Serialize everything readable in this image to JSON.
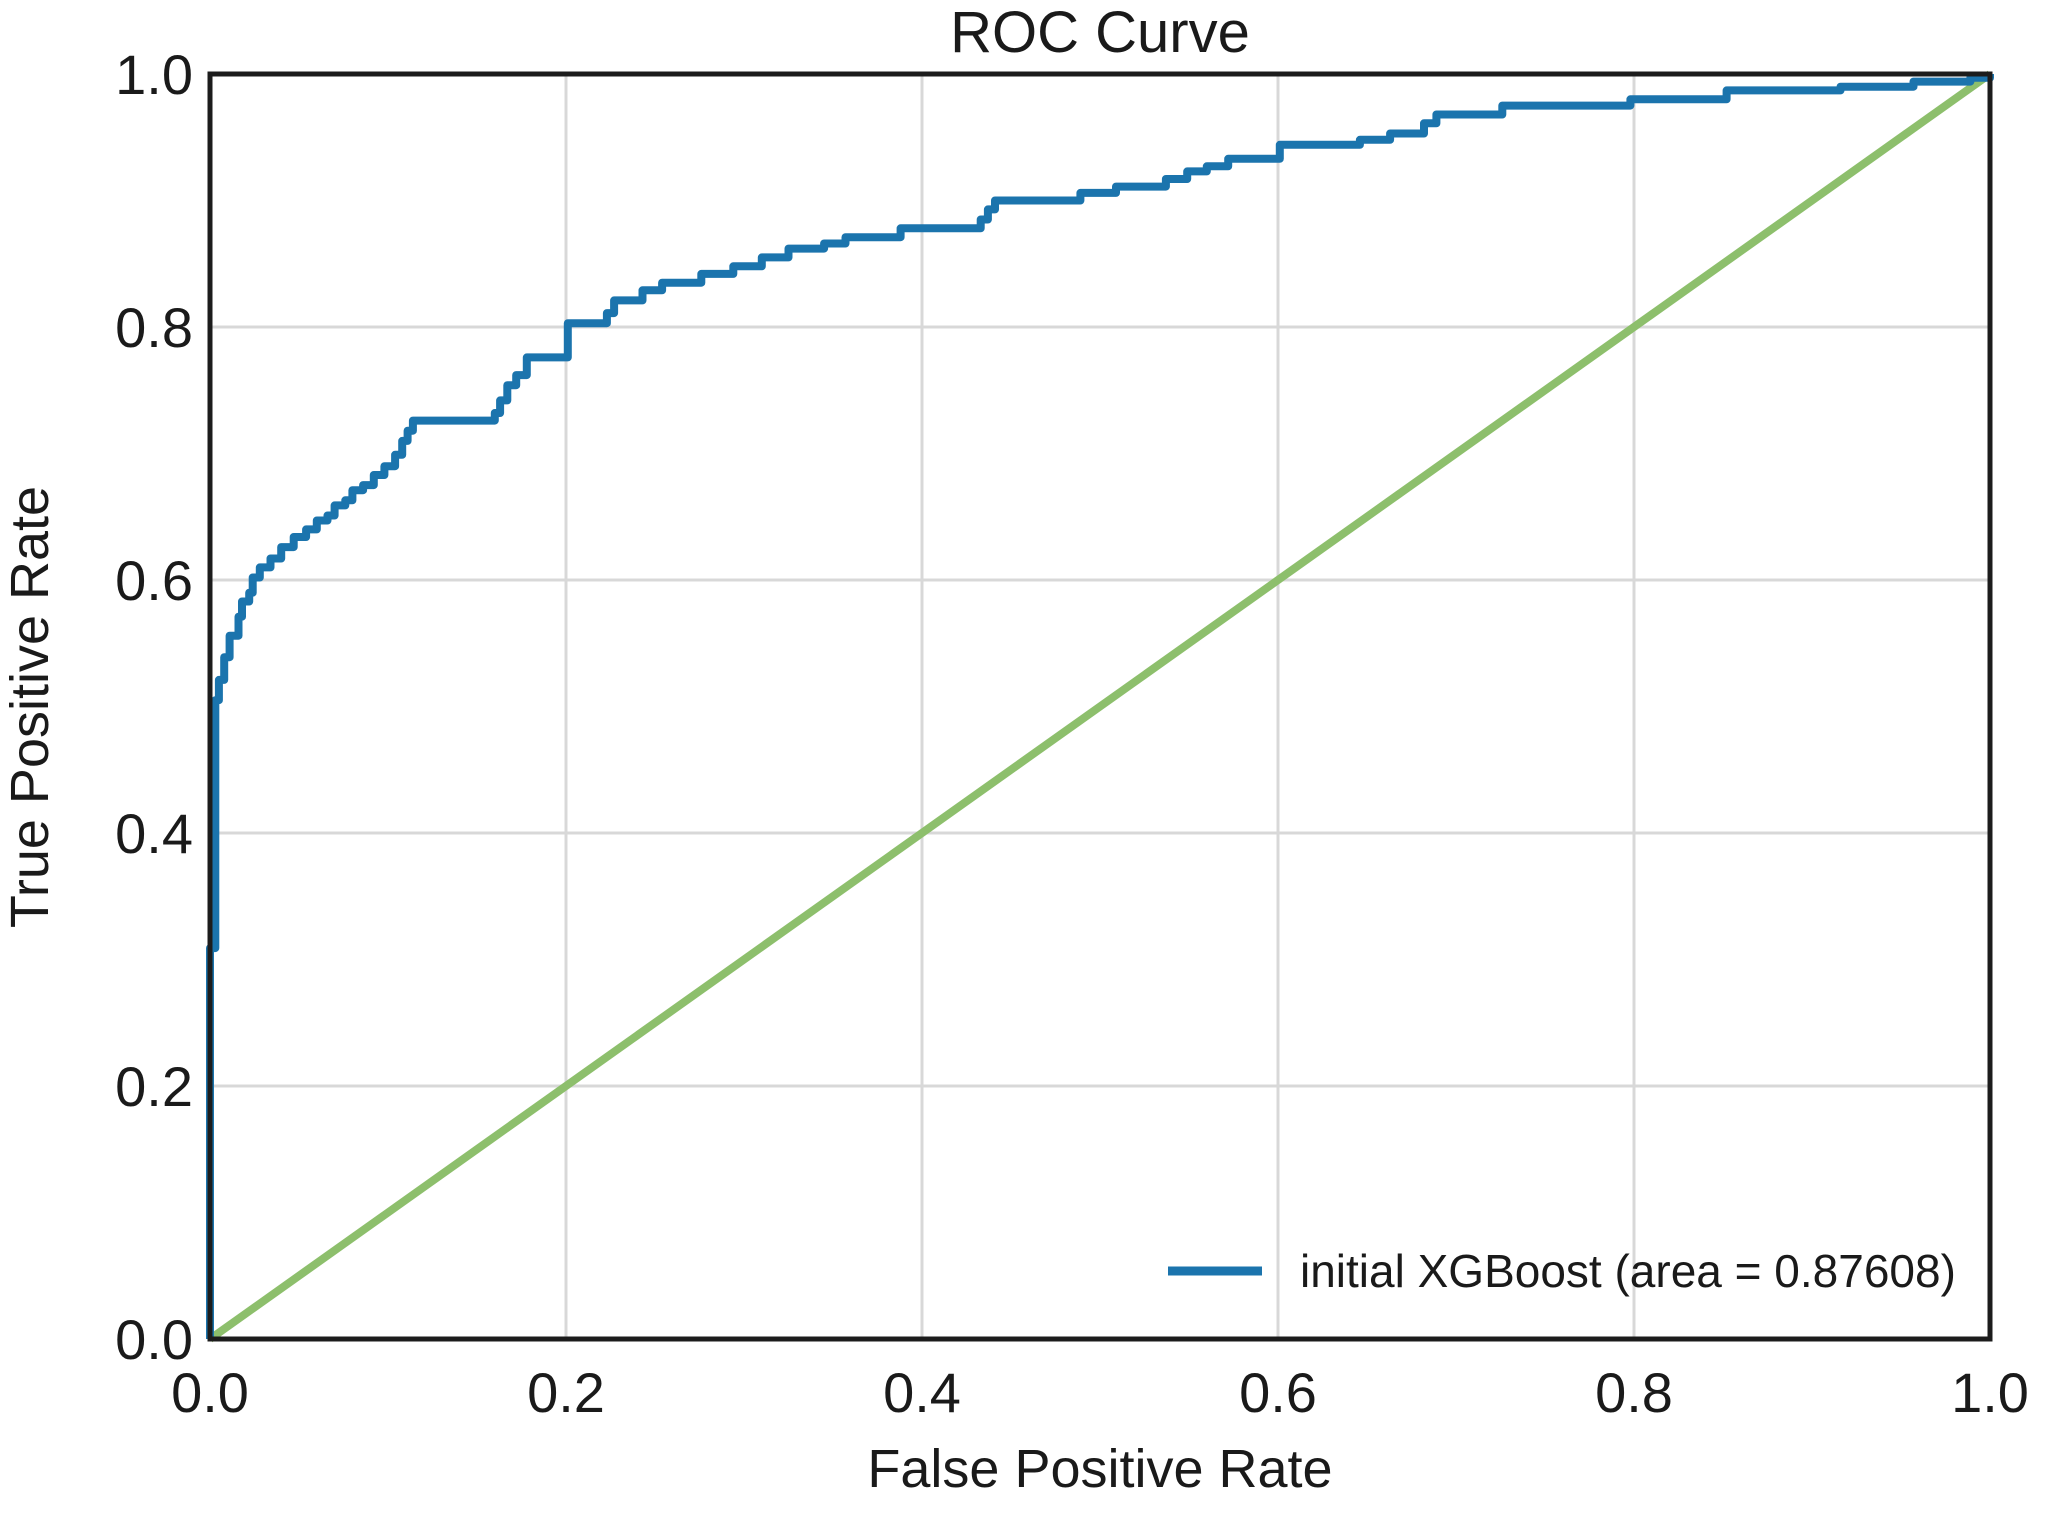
{
  "figure": {
    "title": "ROC Curve",
    "background": "#ffffff"
  },
  "axes": {
    "xlabel": "False Positive Rate",
    "ylabel": "True Positive Rate",
    "x_tick_labels": [
      "0.0",
      "0.2",
      "0.4",
      "0.6",
      "0.8",
      "1.0"
    ],
    "y_tick_labels": [
      "0.0",
      "0.2",
      "0.4",
      "0.6",
      "0.8",
      "1.0"
    ],
    "grid_color": "#d8d8d8",
    "spine_color": "#1c1c1c",
    "text_color": "#1a1a1a"
  },
  "legend": {
    "label": "initial XGBoost (area = 0.87608)",
    "location": "lower right",
    "swatch_color": "#1b74ad"
  },
  "chart_data": {
    "type": "line",
    "title": "ROC Curve",
    "xlabel": "False Positive Rate",
    "ylabel": "True Positive Rate",
    "xlim": [
      0.0,
      1.0
    ],
    "ylim": [
      0.0,
      1.0
    ],
    "x_ticks": [
      0.0,
      0.2,
      0.4,
      0.6,
      0.8,
      1.0
    ],
    "y_ticks": [
      0.0,
      0.2,
      0.4,
      0.6,
      0.8,
      1.0
    ],
    "grid": true,
    "legend_position": "lower right",
    "series": [
      {
        "name": "initial XGBoost (area = 0.87608)",
        "type": "step",
        "color": "#1b74ad",
        "auc": 0.87608,
        "points": [
          [
            0.0,
            0.0
          ],
          [
            0.0,
            0.309
          ],
          [
            0.003,
            0.309
          ],
          [
            0.003,
            0.505
          ],
          [
            0.005,
            0.521
          ],
          [
            0.008,
            0.539
          ],
          [
            0.011,
            0.556
          ],
          [
            0.016,
            0.571
          ],
          [
            0.018,
            0.583
          ],
          [
            0.022,
            0.59
          ],
          [
            0.024,
            0.602
          ],
          [
            0.028,
            0.61
          ],
          [
            0.034,
            0.617
          ],
          [
            0.04,
            0.626
          ],
          [
            0.047,
            0.634
          ],
          [
            0.054,
            0.64
          ],
          [
            0.06,
            0.647
          ],
          [
            0.066,
            0.651
          ],
          [
            0.07,
            0.659
          ],
          [
            0.076,
            0.663
          ],
          [
            0.08,
            0.671
          ],
          [
            0.086,
            0.675
          ],
          [
            0.092,
            0.683
          ],
          [
            0.098,
            0.69
          ],
          [
            0.104,
            0.699
          ],
          [
            0.108,
            0.71
          ],
          [
            0.111,
            0.718
          ],
          [
            0.114,
            0.726
          ],
          [
            0.157,
            0.726
          ],
          [
            0.16,
            0.732
          ],
          [
            0.163,
            0.742
          ],
          [
            0.167,
            0.754
          ],
          [
            0.172,
            0.762
          ],
          [
            0.178,
            0.776
          ],
          [
            0.198,
            0.776
          ],
          [
            0.201,
            0.803
          ],
          [
            0.22,
            0.803
          ],
          [
            0.223,
            0.811
          ],
          [
            0.227,
            0.821
          ],
          [
            0.24,
            0.821
          ],
          [
            0.243,
            0.829
          ],
          [
            0.251,
            0.829
          ],
          [
            0.254,
            0.835
          ],
          [
            0.273,
            0.835
          ],
          [
            0.276,
            0.842
          ],
          [
            0.291,
            0.842
          ],
          [
            0.294,
            0.848
          ],
          [
            0.307,
            0.848
          ],
          [
            0.31,
            0.855
          ],
          [
            0.322,
            0.855
          ],
          [
            0.325,
            0.862
          ],
          [
            0.342,
            0.862
          ],
          [
            0.345,
            0.866
          ],
          [
            0.354,
            0.866
          ],
          [
            0.357,
            0.871
          ],
          [
            0.385,
            0.871
          ],
          [
            0.388,
            0.878
          ],
          [
            0.43,
            0.878
          ],
          [
            0.433,
            0.885
          ],
          [
            0.437,
            0.893
          ],
          [
            0.441,
            0.9
          ],
          [
            0.486,
            0.9
          ],
          [
            0.489,
            0.906
          ],
          [
            0.506,
            0.906
          ],
          [
            0.509,
            0.911
          ],
          [
            0.534,
            0.911
          ],
          [
            0.537,
            0.917
          ],
          [
            0.546,
            0.917
          ],
          [
            0.549,
            0.923
          ],
          [
            0.557,
            0.923
          ],
          [
            0.56,
            0.927
          ],
          [
            0.569,
            0.927
          ],
          [
            0.572,
            0.933
          ],
          [
            0.598,
            0.933
          ],
          [
            0.601,
            0.944
          ],
          [
            0.643,
            0.944
          ],
          [
            0.646,
            0.948
          ],
          [
            0.66,
            0.948
          ],
          [
            0.663,
            0.953
          ],
          [
            0.679,
            0.953
          ],
          [
            0.682,
            0.961
          ],
          [
            0.686,
            0.961
          ],
          [
            0.689,
            0.968
          ],
          [
            0.723,
            0.968
          ],
          [
            0.726,
            0.975
          ],
          [
            0.795,
            0.975
          ],
          [
            0.798,
            0.98
          ],
          [
            0.849,
            0.98
          ],
          [
            0.852,
            0.987
          ],
          [
            0.913,
            0.987
          ],
          [
            0.916,
            0.99
          ],
          [
            0.954,
            0.99
          ],
          [
            0.957,
            0.994
          ],
          [
            0.986,
            0.994
          ],
          [
            0.989,
            0.997
          ],
          [
            1.0,
            1.0
          ]
        ]
      },
      {
        "name": "chance diagonal",
        "type": "line",
        "color": "#8dbf6c",
        "points": [
          [
            0.0,
            0.0
          ],
          [
            1.0,
            1.0
          ]
        ]
      }
    ]
  }
}
